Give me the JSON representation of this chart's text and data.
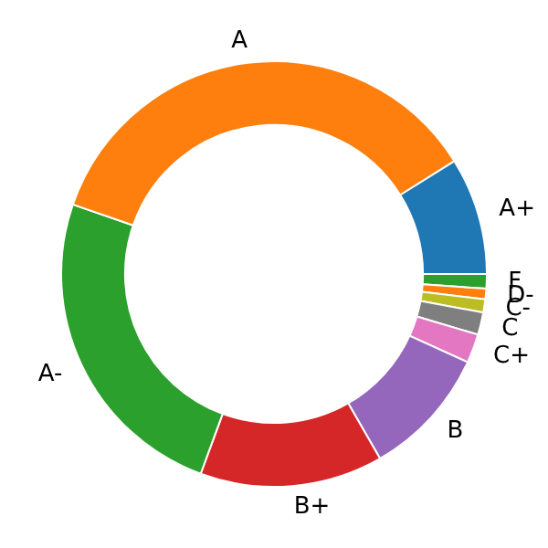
{
  "chart_data": {
    "type": "donut",
    "categories": [
      "A+",
      "A",
      "A-",
      "B+",
      "B",
      "C+",
      "C",
      "C-",
      "D-",
      "F"
    ],
    "values": [
      8.9,
      35.8,
      24.7,
      13.9,
      9.9,
      2.2,
      1.7,
      1.0,
      0.8,
      1.1
    ],
    "colors": [
      "#1f77b4",
      "#ff7f0e",
      "#2ca02c",
      "#d62728",
      "#9467bd",
      "#e377c2",
      "#7f7f7f",
      "#bcbd22",
      "#ff7f0e",
      "#2ca02c"
    ],
    "legend": false
  }
}
